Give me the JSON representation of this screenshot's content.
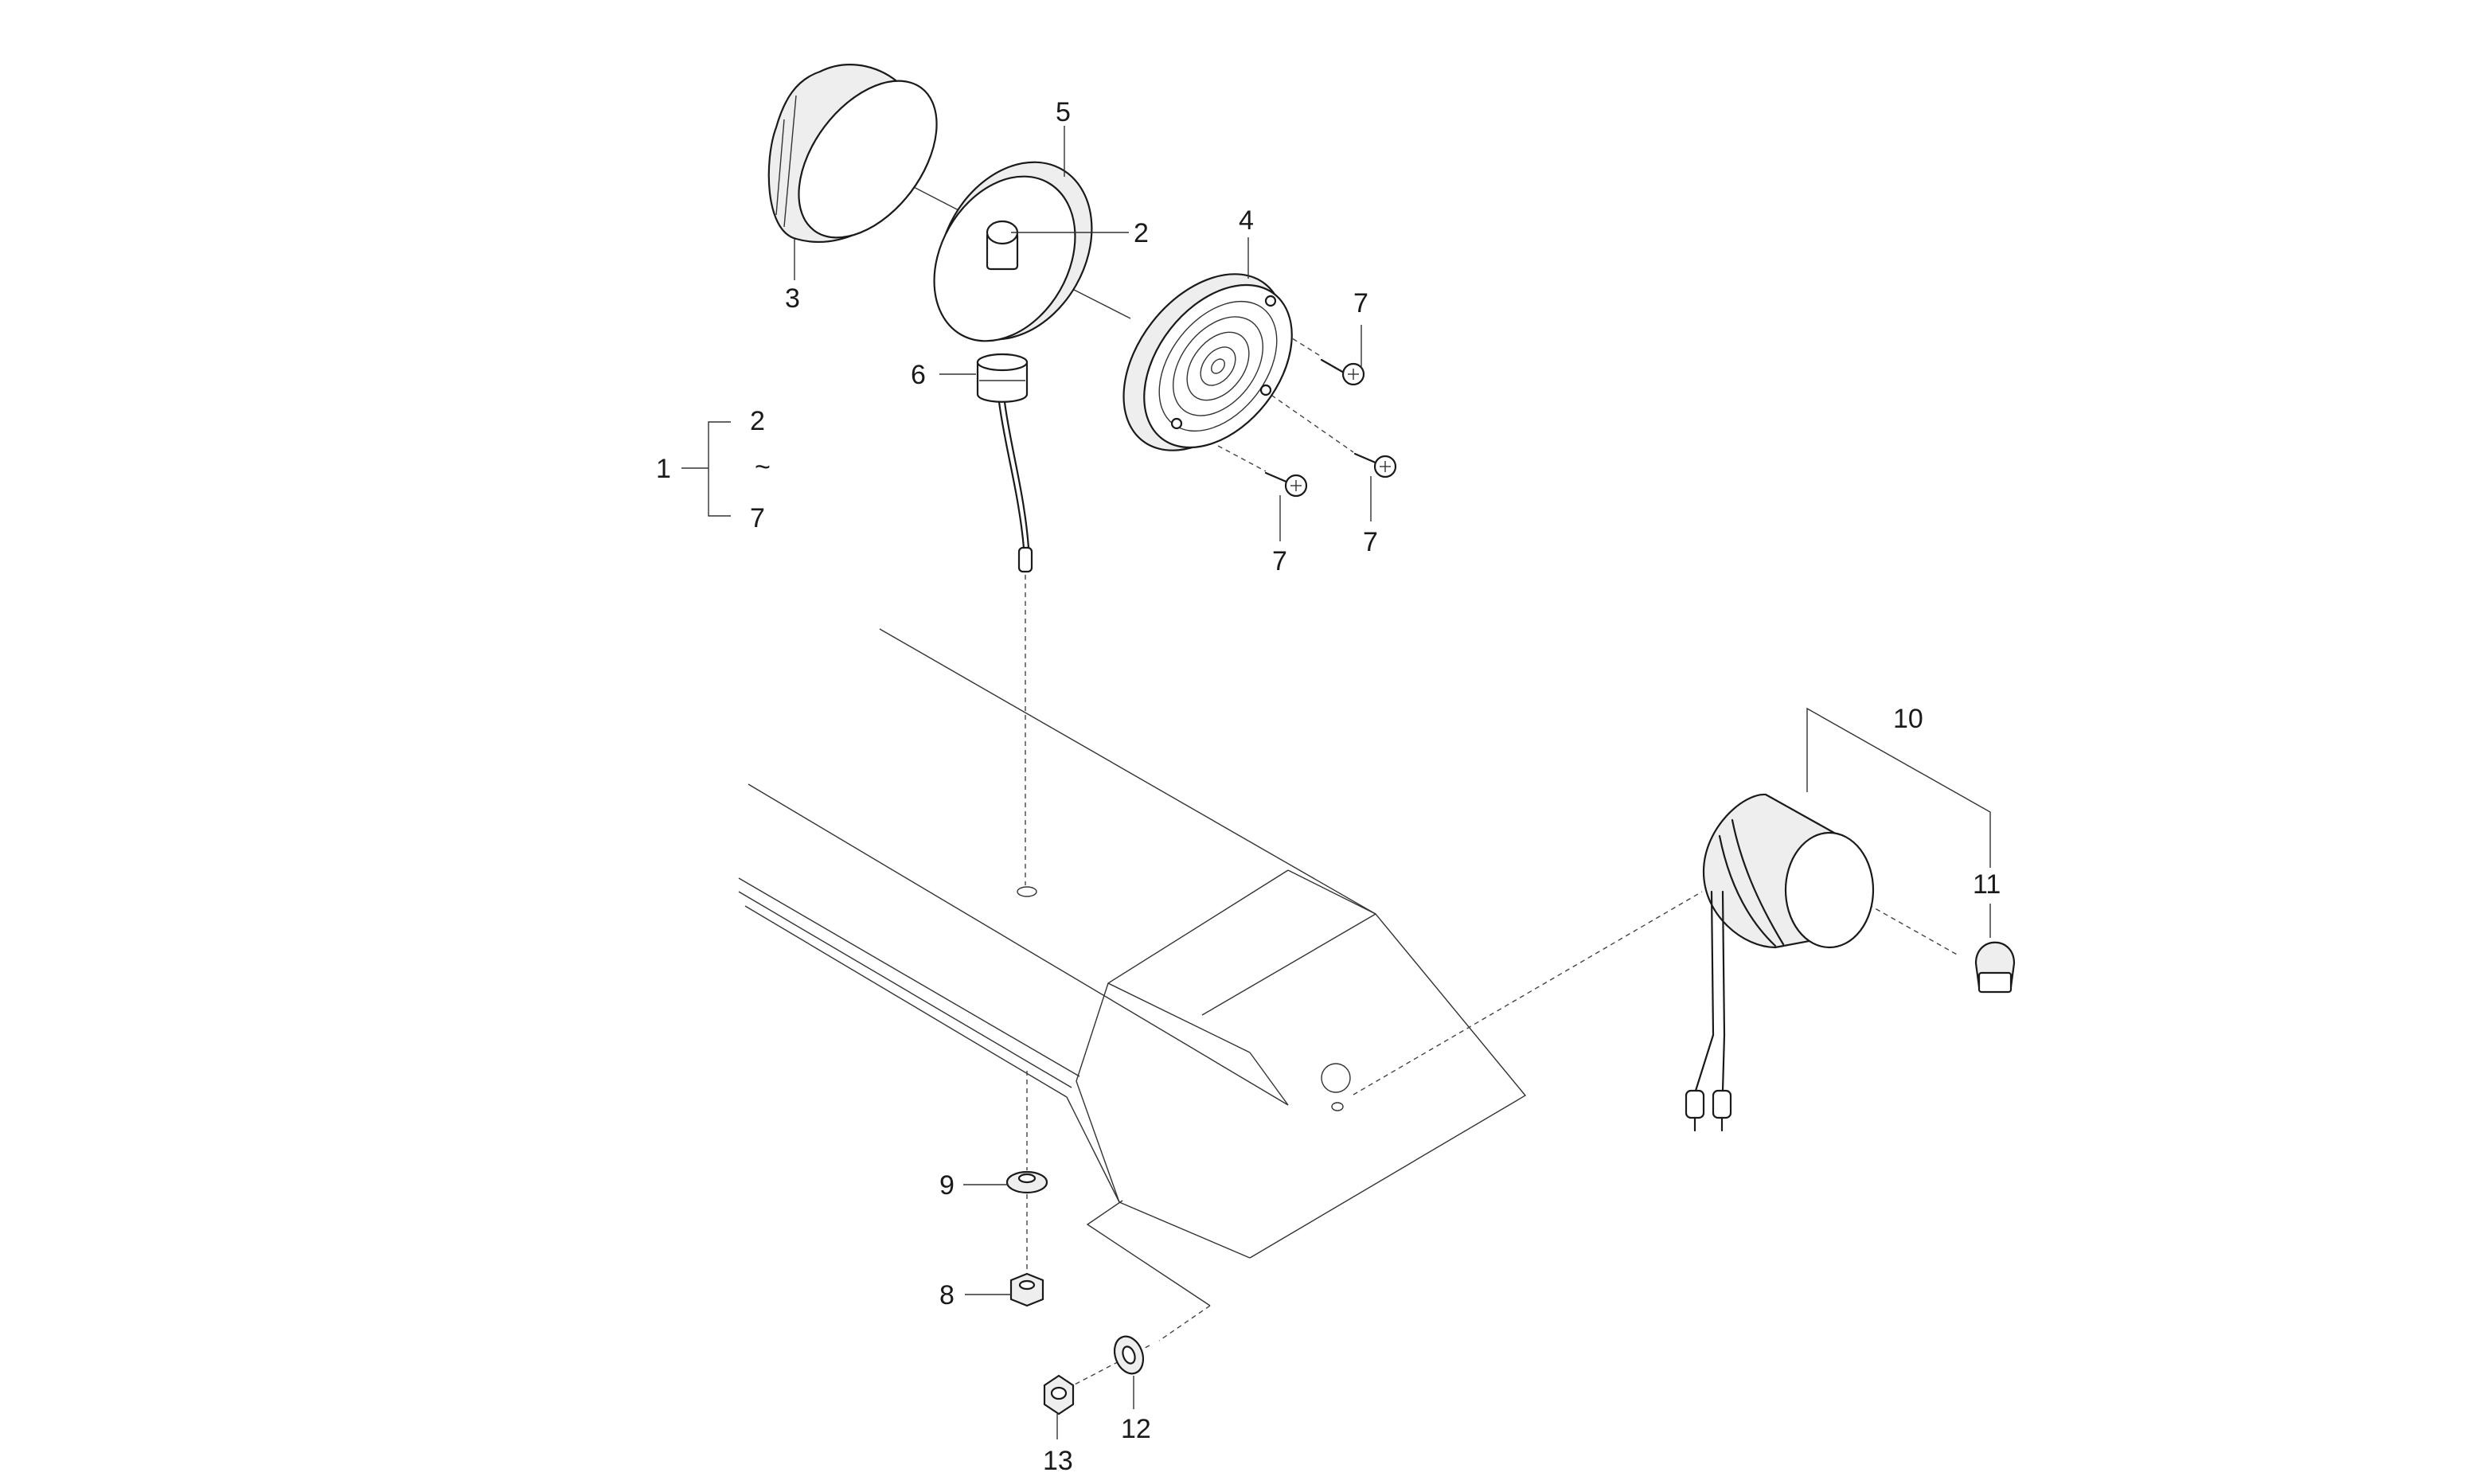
{
  "callouts": [
    {
      "id": "c1",
      "text": "1"
    },
    {
      "id": "c2a",
      "text": "2"
    },
    {
      "id": "c2b",
      "text": "2"
    },
    {
      "id": "c3",
      "text": "3"
    },
    {
      "id": "c4",
      "text": "4"
    },
    {
      "id": "c5",
      "text": "5"
    },
    {
      "id": "c6",
      "text": "6"
    },
    {
      "id": "c7a",
      "text": "7"
    },
    {
      "id": "c7b",
      "text": "7"
    },
    {
      "id": "c7c",
      "text": "7"
    },
    {
      "id": "c7d",
      "text": "7"
    },
    {
      "id": "c8",
      "text": "8"
    },
    {
      "id": "c9",
      "text": "9"
    },
    {
      "id": "c10",
      "text": "10"
    },
    {
      "id": "c11",
      "text": "11"
    },
    {
      "id": "c12",
      "text": "12"
    },
    {
      "id": "c13",
      "text": "13"
    }
  ],
  "range_symbol": "~"
}
